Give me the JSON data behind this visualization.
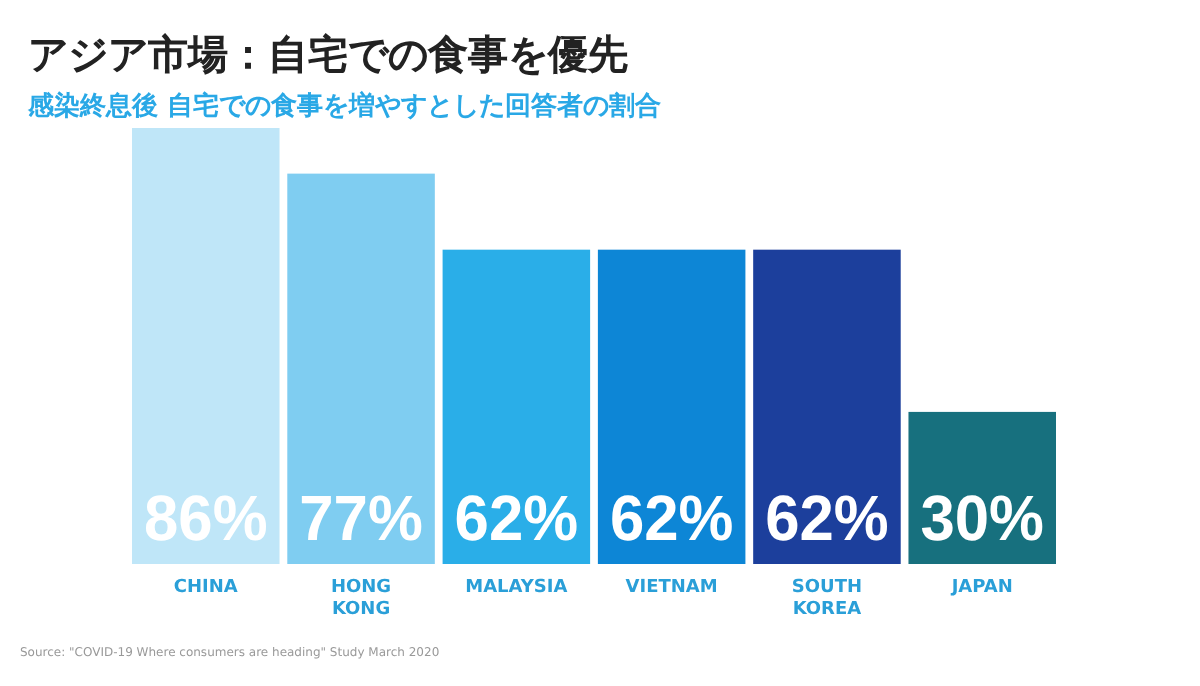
{
  "chart_data": {
    "type": "bar",
    "title": "アジア市場：自宅での食事を優先",
    "subtitle": "感染終息後 自宅での食事を増やすとした回答者の割合",
    "categories": [
      "CHINA",
      "HONG KONG",
      "MALAYSIA",
      "VIETNAM",
      "SOUTH KOREA",
      "JAPAN"
    ],
    "values": [
      86,
      77,
      62,
      62,
      62,
      30
    ],
    "colors": [
      "#bfe6f8",
      "#7fcdf1",
      "#2aaee8",
      "#0d86d6",
      "#1c3f9c",
      "#17707e"
    ],
    "value_labels": [
      "86%",
      "77%",
      "62%",
      "62%",
      "62%",
      "30%"
    ],
    "annotations": [
      "Source: \"COVID-19 Where consumers are heading\" Study March 2020"
    ]
  }
}
